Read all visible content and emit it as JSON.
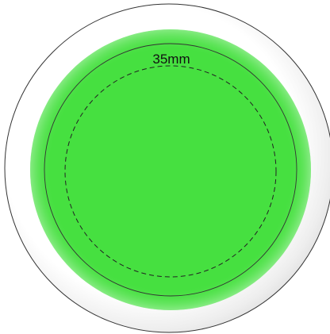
{
  "label": "35mm"
}
